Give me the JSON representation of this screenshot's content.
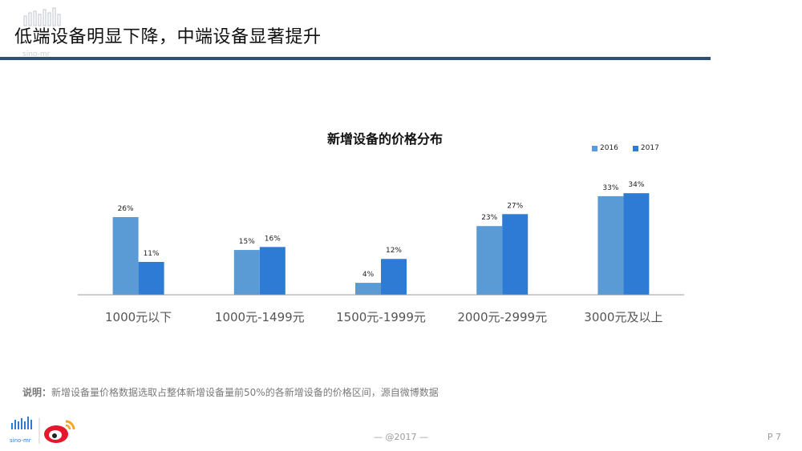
{
  "header": {
    "title": "低端设备明显下降，中端设备显著提升",
    "logo_text": "sino-mr"
  },
  "colors": {
    "series_2016": "#5b9bd5",
    "series_2017": "#2e7bd6",
    "title_rule": "#2d4f7a",
    "axis": "#9a9a9a"
  },
  "chart_data": {
    "type": "bar",
    "title": "新增设备的价格分布",
    "categories": [
      "1000元以下",
      "1000元-1499元",
      "1500元-1999元",
      "2000元-2999元",
      "3000元及以上"
    ],
    "series": [
      {
        "name": "2016",
        "values": [
          26,
          15,
          4,
          23,
          33
        ],
        "labels": [
          "26%",
          "15%",
          "4%",
          "23%",
          "33%"
        ]
      },
      {
        "name": "2017",
        "values": [
          11,
          16,
          12,
          27,
          34
        ],
        "labels": [
          "11%",
          "16%",
          "12%",
          "27%",
          "34%"
        ]
      }
    ],
    "xlabel": "",
    "ylabel": "",
    "ylim": [
      0,
      36
    ],
    "grid": false,
    "legend_position": "top-right"
  },
  "note": {
    "label": "说明：",
    "text": "新增设备量价格数据选取占整体新增设备量前50%的各新增设备的价格区间，源自微博数据"
  },
  "footer": {
    "center": "— @2017 —",
    "page": "P 7",
    "logo_text": "sino-mr"
  }
}
